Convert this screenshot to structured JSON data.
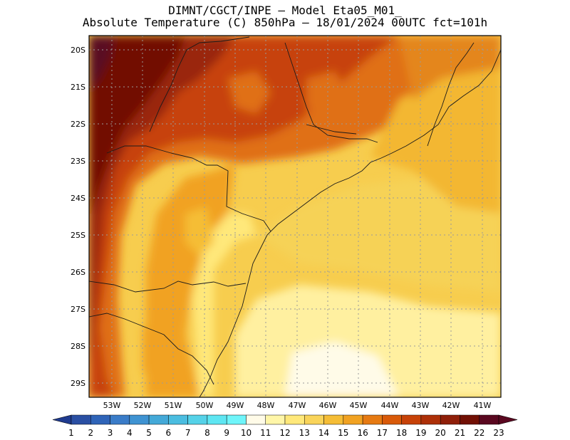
{
  "title": {
    "line1": "DIMNT/CGCT/INPE –  Model Eta05_M01_",
    "line2": "Absolute Temperature (C) 850hPa –  18/01/2024 00UTC fct=101h"
  },
  "lat_labels": [
    "20S",
    "21S",
    "22S",
    "23S",
    "24S",
    "25S",
    "26S",
    "27S",
    "28S",
    "29S"
  ],
  "lon_labels": [
    "53W",
    "52W",
    "51W",
    "50W",
    "49W",
    "48W",
    "47W",
    "46W",
    "45W",
    "44W",
    "43W",
    "42W",
    "41W"
  ],
  "colorbar": {
    "labels": [
      "1",
      "2",
      "3",
      "4",
      "5",
      "6",
      "7",
      "8",
      "9",
      "10",
      "11",
      "12",
      "13",
      "14",
      "15",
      "16",
      "17",
      "18",
      "19",
      "20",
      "21",
      "22",
      "23"
    ],
    "colors": [
      "#1f3b8f",
      "#2a4fa3",
      "#2f64b8",
      "#3a7cc8",
      "#3f93d2",
      "#44a9d8",
      "#4bbde0",
      "#55d2e8",
      "#5ee6f2",
      "#6ff5fa",
      "#fffbe8",
      "#fff6a8",
      "#ffe87a",
      "#f9d45a",
      "#f5bd36",
      "#f1a222",
      "#e67a12",
      "#d95a09",
      "#c74208",
      "#ad3008",
      "#8f1f09",
      "#721005",
      "#5a0820"
    ]
  },
  "chart_data": {
    "type": "heatmap",
    "variable": "Absolute Temperature (C) 850hPa",
    "units": "C",
    "lon_range": [
      -53.6,
      -40.6
    ],
    "lat_range": [
      -29.4,
      -19.9
    ],
    "color_levels": [
      1,
      2,
      3,
      4,
      5,
      6,
      7,
      8,
      9,
      10,
      11,
      12,
      13,
      14,
      15,
      16,
      17,
      18,
      19,
      20,
      21,
      22,
      23
    ],
    "grid": true
  }
}
